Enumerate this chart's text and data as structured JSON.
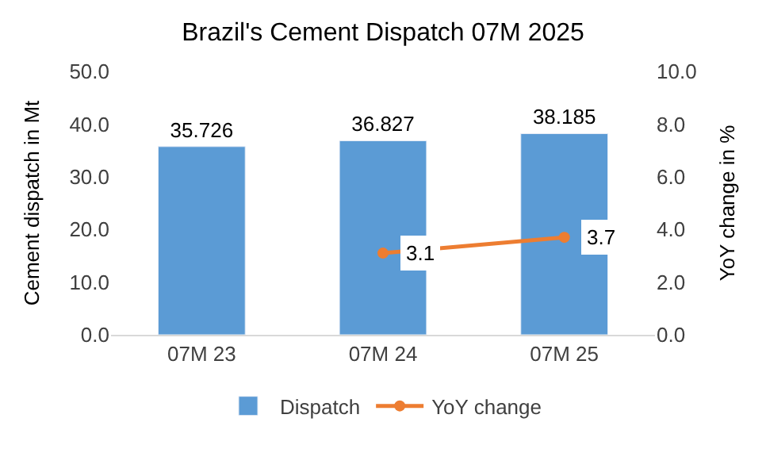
{
  "chart_data": {
    "type": "bar",
    "title": "Brazil's Cement Dispatch 07M 2025",
    "ylabel": "Cement dispatch in Mt",
    "y2label": "YoY change in %",
    "categories": [
      "07M 23",
      "07M 24",
      "07M 25"
    ],
    "series": [
      {
        "name": "Dispatch",
        "color": "#5b9bd5",
        "values": [
          35.726,
          36.827,
          38.185
        ]
      },
      {
        "name": "YoY change",
        "type": "line",
        "axis": "y2",
        "color": "#ed7d31",
        "marker": "circle",
        "values": [
          null,
          3.1,
          3.7
        ]
      }
    ],
    "ylim": [
      0,
      50
    ],
    "yticks": [
      {
        "value": 0,
        "label": "0.0"
      },
      {
        "value": 10,
        "label": "10.0"
      },
      {
        "value": 20,
        "label": "20.0"
      },
      {
        "value": 30,
        "label": "30.0"
      },
      {
        "value": 40,
        "label": "40.0"
      },
      {
        "value": 50,
        "label": "50.0"
      }
    ],
    "y2lim": [
      0,
      10
    ],
    "y2ticks": [
      {
        "value": 0,
        "label": "0.0"
      },
      {
        "value": 2,
        "label": "2.0"
      },
      {
        "value": 4,
        "label": "4.0"
      },
      {
        "value": 6,
        "label": "6.0"
      },
      {
        "value": 8,
        "label": "8.0"
      },
      {
        "value": 10,
        "label": "10.0"
      }
    ],
    "data_labels": true,
    "legend": "bottom"
  }
}
